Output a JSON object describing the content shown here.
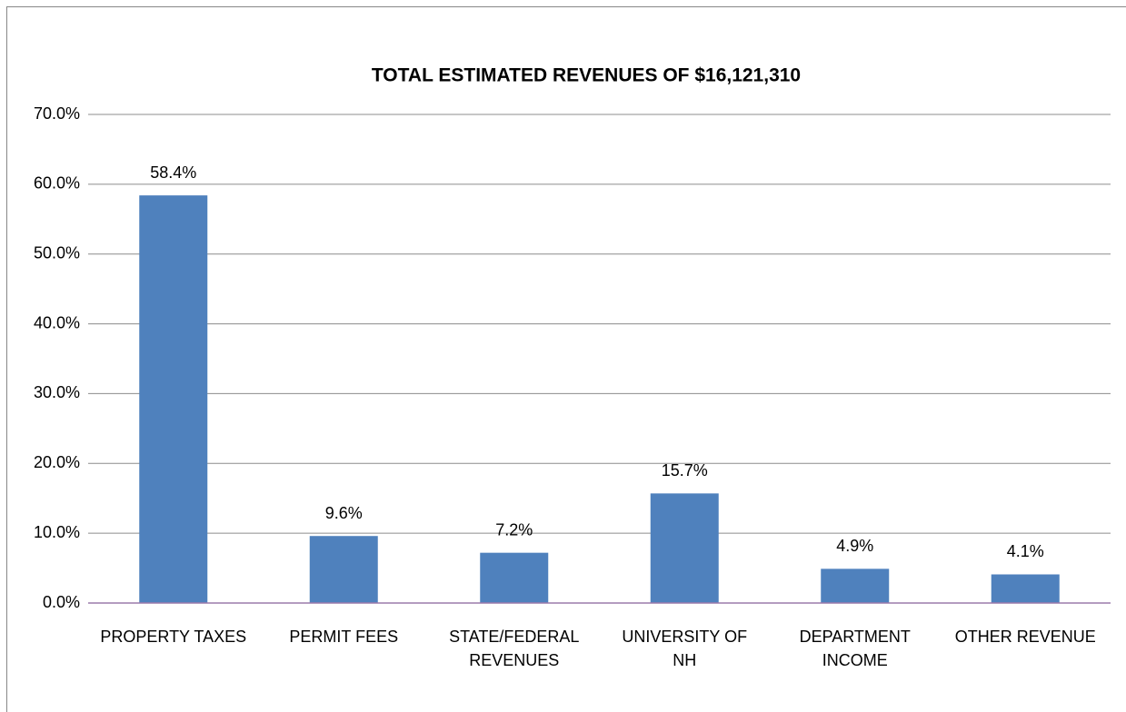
{
  "chart_data": {
    "type": "bar",
    "title": "TOTAL ESTIMATED REVENUES OF $16,121,310",
    "categories": [
      "PROPERTY TAXES",
      "PERMIT FEES",
      "STATE/FEDERAL\nREVENUES",
      "UNIVERSITY OF\nNH",
      "DEPARTMENT\nINCOME",
      "OTHER REVENUE"
    ],
    "values": [
      58.4,
      9.6,
      7.2,
      15.7,
      4.9,
      4.1
    ],
    "value_labels": [
      "58.4%",
      "9.6%",
      "7.2%",
      "15.7%",
      "4.9%",
      "4.1%"
    ],
    "color": "#4f81bd",
    "ylim": [
      0,
      70
    ],
    "yticks": [
      {
        "value": 0,
        "label": "0.0%"
      },
      {
        "value": 10,
        "label": "10.0%"
      },
      {
        "value": 20,
        "label": "20.0%"
      },
      {
        "value": 30,
        "label": "30.0%"
      },
      {
        "value": 40,
        "label": "40.0%"
      },
      {
        "value": 50,
        "label": "50.0%"
      },
      {
        "value": 60,
        "label": "60.0%"
      },
      {
        "value": 70,
        "label": "70.0%"
      }
    ],
    "grid": true
  }
}
